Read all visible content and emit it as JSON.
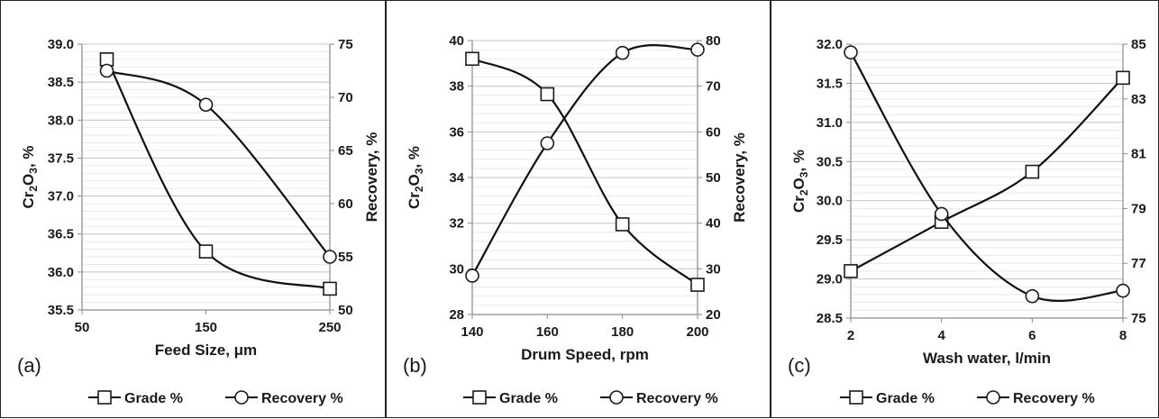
{
  "chart_data": [
    {
      "type": "line",
      "panel_label": "(a)",
      "xlabel": "Feed Size, μm",
      "ylabel_left": "Cr2O3, %",
      "ylabel_left_parts": [
        "Cr",
        "2",
        "O",
        "3",
        ", %"
      ],
      "ylabel_right": "Recovery, %",
      "xlim": [
        50,
        250
      ],
      "xticks": [
        50,
        150,
        250
      ],
      "ylim_left": [
        35.5,
        39.0
      ],
      "yticks_left": [
        "35.5",
        "36.0",
        "36.5",
        "37.0",
        "37.5",
        "38.0",
        "38.5",
        "39.0"
      ],
      "ylim_right": [
        50,
        75
      ],
      "yticks_right": [
        "50",
        "55",
        "60",
        "65",
        "70",
        "75"
      ],
      "grid": true,
      "legend_position": "bottom",
      "series": [
        {
          "name": "Grade %",
          "axis": "left",
          "marker": "square",
          "x": [
            70,
            150,
            250
          ],
          "y": [
            38.8,
            36.27,
            35.78
          ]
        },
        {
          "name": "Recovery %",
          "axis": "right",
          "marker": "circle",
          "x": [
            70,
            150,
            250
          ],
          "y": [
            72.5,
            69.3,
            55.0
          ]
        }
      ]
    },
    {
      "type": "line",
      "panel_label": "(b)",
      "xlabel": "Drum Speed, rpm",
      "ylabel_left": "Cr2O3, %",
      "ylabel_left_parts": [
        "Cr",
        "2",
        "O",
        "3",
        ", %"
      ],
      "ylabel_right": "Recovery, %",
      "xlim": [
        140,
        200
      ],
      "xticks": [
        140,
        160,
        180,
        200
      ],
      "ylim_left": [
        28,
        40
      ],
      "yticks_left": [
        "28",
        "30",
        "32",
        "34",
        "36",
        "38",
        "40"
      ],
      "ylim_right": [
        20,
        80
      ],
      "yticks_right": [
        "20",
        "30",
        "40",
        "50",
        "60",
        "70",
        "80"
      ],
      "grid": true,
      "legend_position": "bottom",
      "series": [
        {
          "name": "Grade %",
          "axis": "left",
          "marker": "square",
          "x": [
            140,
            160,
            180,
            200
          ],
          "y": [
            39.2,
            37.65,
            31.95,
            29.3
          ]
        },
        {
          "name": "Recovery %",
          "axis": "right",
          "marker": "circle",
          "x": [
            140,
            160,
            180,
            200
          ],
          "y": [
            28.5,
            57.5,
            77.3,
            78.0
          ]
        }
      ]
    },
    {
      "type": "line",
      "panel_label": "(c)",
      "xlabel": "Wash water, l/min",
      "ylabel_left": "Cr2O3, %",
      "ylabel_left_parts": [
        "Cr",
        "2",
        "O",
        "3",
        ", %"
      ],
      "ylabel_right": "Recovery, %",
      "xlim": [
        2,
        8
      ],
      "xticks": [
        2,
        4,
        6,
        8
      ],
      "ylim_left": [
        28.5,
        32.0
      ],
      "yticks_left": [
        "28.5",
        "29.0",
        "29.5",
        "30.0",
        "30.5",
        "31.0",
        "31.5",
        "32.0"
      ],
      "ylim_right": [
        75,
        85
      ],
      "yticks_right": [
        "75",
        "77",
        "79",
        "81",
        "83",
        "85"
      ],
      "grid": true,
      "legend_position": "bottom",
      "series": [
        {
          "name": "Grade %",
          "axis": "left",
          "marker": "square",
          "x": [
            2,
            4,
            6,
            8
          ],
          "y": [
            29.1,
            29.73,
            30.37,
            31.57
          ]
        },
        {
          "name": "Recovery %",
          "axis": "right",
          "marker": "circle",
          "x": [
            2,
            4,
            6,
            8
          ],
          "y": [
            84.7,
            78.8,
            75.8,
            76.0
          ]
        }
      ]
    }
  ]
}
